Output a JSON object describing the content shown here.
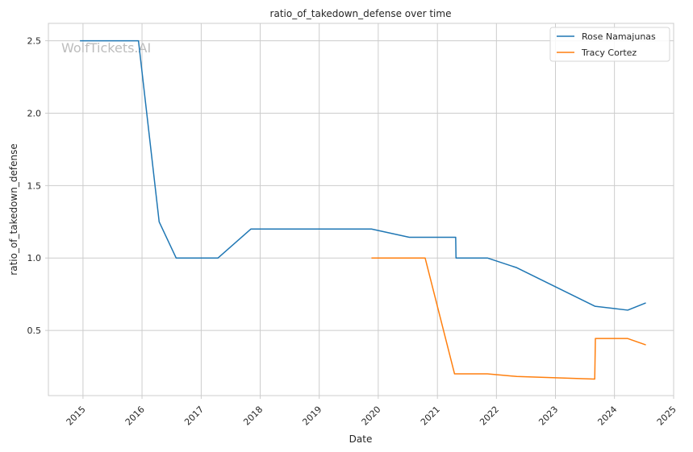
{
  "chart_data": {
    "type": "line",
    "title": "ratio_of_takedown_defense over time",
    "xlabel": "Date",
    "ylabel": "ratio_of_takedown_defense",
    "watermark": "WolfTickets.AI",
    "x_axis_type": "date",
    "xlim": [
      "2014-06-01",
      "2025-01-01"
    ],
    "ylim": [
      0.05,
      2.62
    ],
    "x_ticks": [
      "2015",
      "2016",
      "2017",
      "2018",
      "2019",
      "2020",
      "2021",
      "2022",
      "2023",
      "2024",
      "2025"
    ],
    "y_ticks": [
      "0.5",
      "1.0",
      "1.5",
      "2.0",
      "2.5"
    ],
    "grid": true,
    "legend_position": "top-right",
    "series": [
      {
        "name": "Rose Namajunas",
        "color": "#1f77b4",
        "points": [
          [
            "2014-12-13",
            2.5
          ],
          [
            "2015-12-10",
            2.5
          ],
          [
            "2016-04-16",
            1.25
          ],
          [
            "2016-07-30",
            1.0
          ],
          [
            "2017-04-15",
            1.0
          ],
          [
            "2017-11-04",
            1.2
          ],
          [
            "2019-11-20",
            1.2
          ],
          [
            "2020-07-11",
            1.143
          ],
          [
            "2021-04-24",
            1.143
          ],
          [
            "2021-04-26",
            1.0
          ],
          [
            "2021-11-06",
            1.0
          ],
          [
            "2022-05-07",
            0.933
          ],
          [
            "2023-09-02",
            0.667
          ],
          [
            "2024-03-23",
            0.64
          ],
          [
            "2024-07-13",
            0.69
          ]
        ]
      },
      {
        "name": "Tracy Cortez",
        "color": "#ff7f0e",
        "points": [
          [
            "2019-11-20",
            1.0
          ],
          [
            "2020-10-17",
            1.0
          ],
          [
            "2021-04-17",
            0.2
          ],
          [
            "2021-11-06",
            0.2
          ],
          [
            "2022-05-07",
            0.182
          ],
          [
            "2023-09-01",
            0.164
          ],
          [
            "2023-09-05",
            0.444
          ],
          [
            "2024-03-23",
            0.444
          ],
          [
            "2024-07-13",
            0.4
          ]
        ]
      }
    ]
  }
}
